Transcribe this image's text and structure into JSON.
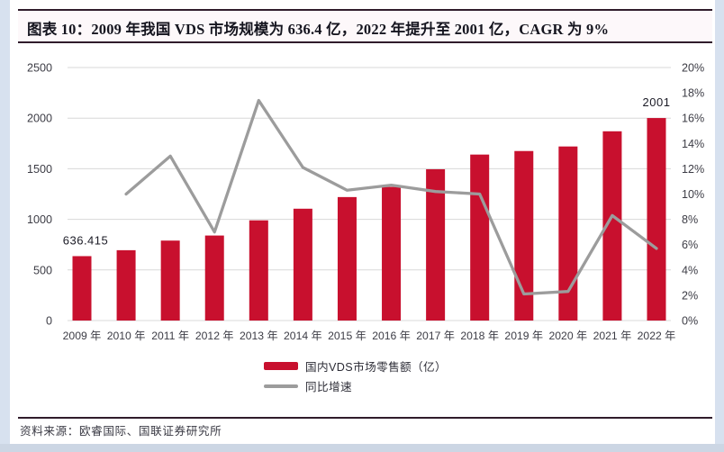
{
  "title_bar": {
    "text": "图表 10：2009 年我国 VDS 市场规模为 636.4 亿，2022 年提升至 2001 亿，CAGR 为 9%"
  },
  "footer": {
    "source": "资料来源：欧睿国际、国联证券研究所"
  },
  "colors": {
    "bar": "#c8102e",
    "line": "#9c9c9c",
    "grid": "#d8d8d8",
    "rule": "#301c2b",
    "axis_text": "#3c3c45",
    "title_text": "#15151f"
  },
  "chart_data": {
    "type": "bar",
    "subtype": "combo-bar-line-dual-axis",
    "categories": [
      "2009 年",
      "2010 年",
      "2011 年",
      "2012 年",
      "2013 年",
      "2014 年",
      "2015 年",
      "2016 年",
      "2017 年",
      "2018 年",
      "2019 年",
      "2020 年",
      "2021 年",
      "2022 年"
    ],
    "series": [
      {
        "name": "国内VDS市场零售额（亿）",
        "type": "bar",
        "axis": "left",
        "values": [
          636.4,
          695,
          790,
          840,
          990,
          1105,
          1220,
          1320,
          1495,
          1640,
          1675,
          1720,
          1870,
          2001
        ]
      },
      {
        "name": "同比增速",
        "type": "line",
        "axis": "right",
        "values": [
          null,
          10.0,
          13.0,
          7.0,
          17.4,
          12.1,
          10.3,
          10.7,
          10.2,
          10.0,
          2.1,
          2.3,
          8.3,
          5.7
        ]
      }
    ],
    "left_axis": {
      "min": 0,
      "max": 2500,
      "step": 500,
      "tick_labels": [
        "0",
        "500",
        "1000",
        "1500",
        "2000",
        "2500"
      ]
    },
    "right_axis": {
      "min": 0,
      "max": 20,
      "step": 2,
      "tick_labels": [
        "0%",
        "2%",
        "4%",
        "6%",
        "8%",
        "10%",
        "12%",
        "14%",
        "16%",
        "18%",
        "20%"
      ]
    },
    "data_labels": [
      {
        "category_index": 0,
        "text": "636.415"
      },
      {
        "category_index": 13,
        "text": "2001"
      }
    ],
    "grid": "horizontal",
    "legend_position": "bottom-center"
  }
}
